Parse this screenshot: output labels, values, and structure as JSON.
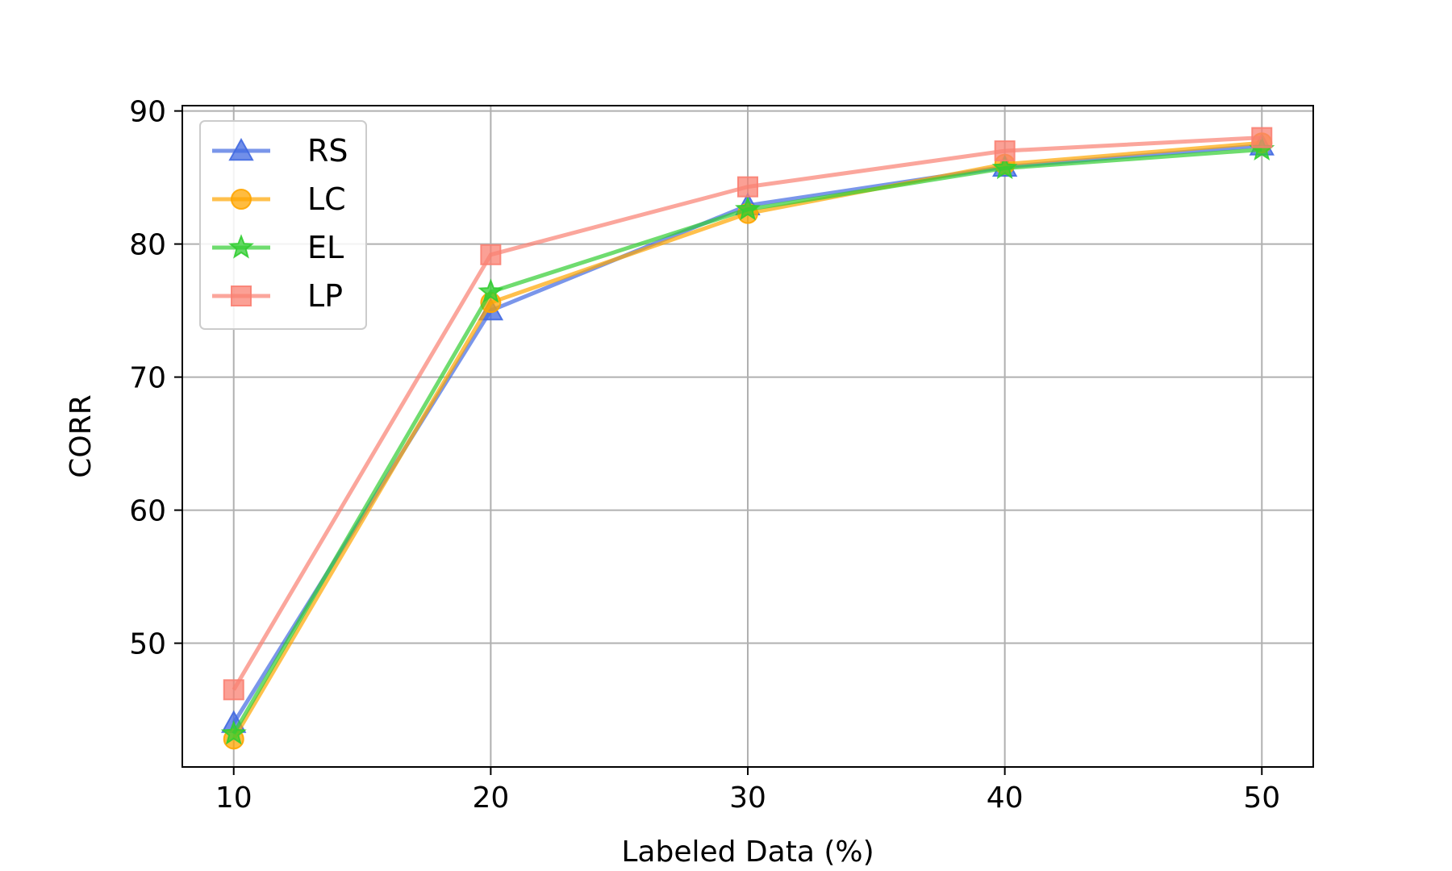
{
  "chart_data": {
    "type": "line",
    "title": "",
    "xlabel": "Labeled Data (%)",
    "ylabel": "CORR",
    "x": [
      10,
      20,
      30,
      40,
      50
    ],
    "xlim": [
      8,
      52
    ],
    "ylim": [
      40.7,
      90.4
    ],
    "xticks": [
      "10",
      "20",
      "30",
      "40",
      "50"
    ],
    "yticks": [
      "50",
      "60",
      "70",
      "80",
      "90"
    ],
    "grid": true,
    "legend": "top-left",
    "series": [
      {
        "name": "RS",
        "marker": "triangle",
        "color": "#4169e1",
        "values": [
          44.0,
          75.0,
          82.9,
          85.8,
          87.4
        ]
      },
      {
        "name": "LC",
        "marker": "circle",
        "color": "#ffa500",
        "values": [
          42.8,
          75.6,
          82.3,
          86.0,
          87.6
        ]
      },
      {
        "name": "EL",
        "marker": "star",
        "color": "#32cd32",
        "values": [
          43.2,
          76.4,
          82.6,
          85.7,
          87.1
        ]
      },
      {
        "name": "LP",
        "marker": "square",
        "color": "#fa8072",
        "values": [
          46.5,
          79.2,
          84.3,
          87.0,
          88.0
        ]
      }
    ]
  }
}
